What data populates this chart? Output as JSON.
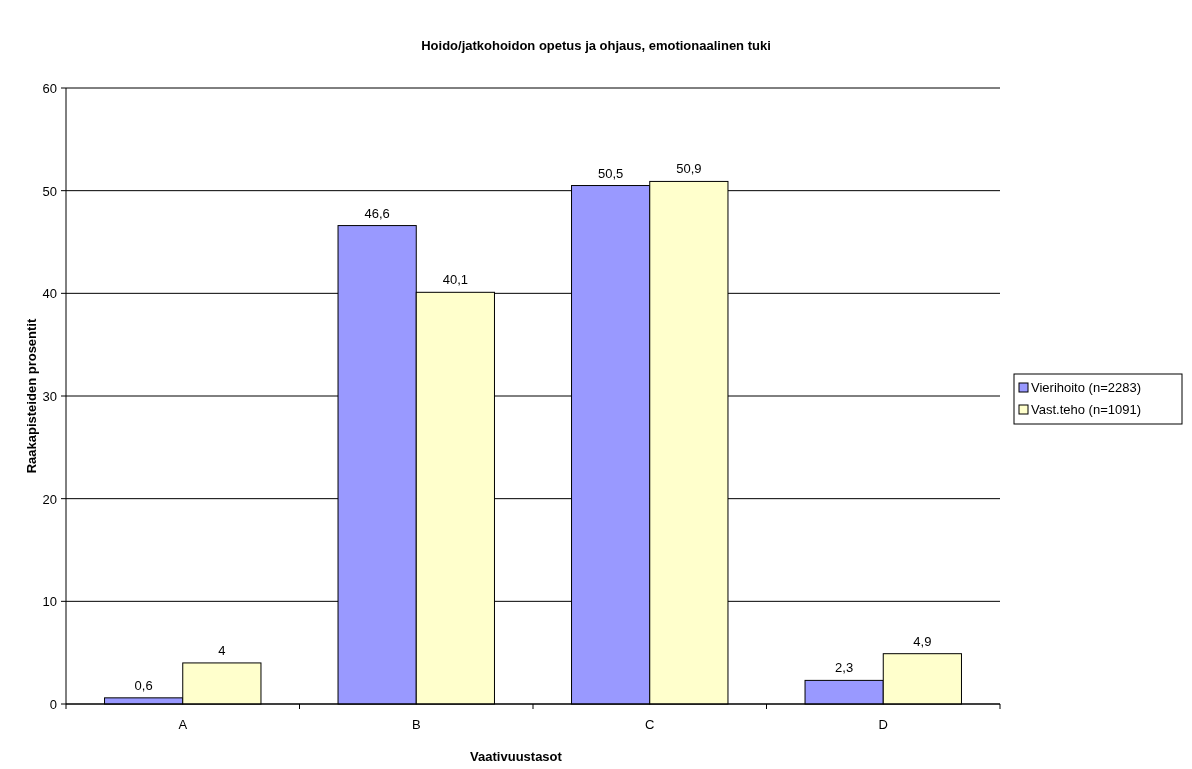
{
  "chart_data": {
    "type": "bar",
    "title": "Hoido/jatkohoidon opetus ja ohjaus, emotionaalinen tuki",
    "xlabel": "Vaativuustasot",
    "ylabel": "Raakapisteiden prosentit",
    "categories": [
      "A",
      "B",
      "C",
      "D"
    ],
    "series": [
      {
        "name": "Vierihoito (n=2283)",
        "color": "#9999ff",
        "values": [
          0.6,
          46.6,
          50.5,
          2.3
        ],
        "value_labels": [
          "0,6",
          "46,6",
          "50,5",
          "2,3"
        ]
      },
      {
        "name": "Vast.teho (n=1091)",
        "color": "#ffffcc",
        "values": [
          4,
          40.1,
          50.9,
          4.9
        ],
        "value_labels": [
          "4",
          "40,1",
          "50,9",
          "4,9"
        ]
      }
    ],
    "ylim": [
      0,
      60
    ],
    "yticks": [
      0,
      10,
      20,
      30,
      40,
      50,
      60
    ],
    "grid": "y",
    "legend": "right"
  }
}
